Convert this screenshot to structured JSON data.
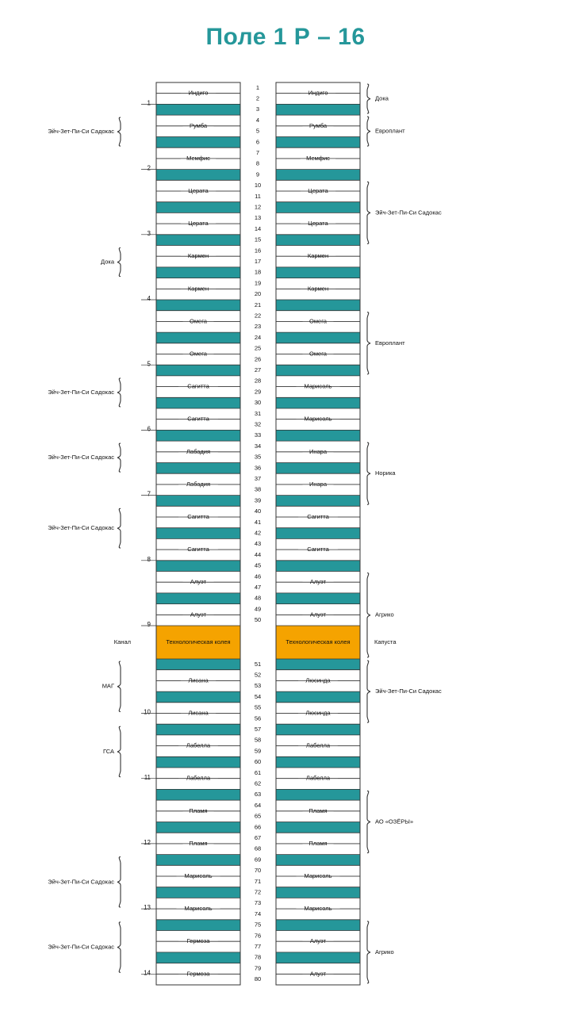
{
  "title": "Поле 1 Р – 16",
  "rows": [
    {
      "n": "1",
      "left": "Индиго",
      "right": "Индиго"
    },
    {
      "n": "2"
    },
    {
      "n": "3",
      "t": "teal"
    },
    {
      "n": "4",
      "left": "Румба",
      "right": "Румба"
    },
    {
      "n": "5"
    },
    {
      "n": "6",
      "t": "teal"
    },
    {
      "n": "7",
      "left": "Мемфис",
      "right": "Мемфис"
    },
    {
      "n": "8"
    },
    {
      "n": "9",
      "t": "teal"
    },
    {
      "n": "10",
      "left": "Церата",
      "right": "Церата"
    },
    {
      "n": "11"
    },
    {
      "n": "12",
      "t": "teal"
    },
    {
      "n": "13",
      "left": "Церата",
      "right": "Церата"
    },
    {
      "n": "14"
    },
    {
      "n": "15",
      "t": "teal"
    },
    {
      "n": "16",
      "left": "Кармен",
      "right": "Кармен"
    },
    {
      "n": "17"
    },
    {
      "n": "18",
      "t": "teal"
    },
    {
      "n": "19",
      "left": "Кармен",
      "right": "Кармен"
    },
    {
      "n": "20"
    },
    {
      "n": "21",
      "t": "teal"
    },
    {
      "n": "22",
      "left": "Омега",
      "right": "Омега"
    },
    {
      "n": "23"
    },
    {
      "n": "24",
      "t": "teal"
    },
    {
      "n": "25",
      "left": "Омега",
      "right": "Омега"
    },
    {
      "n": "26"
    },
    {
      "n": "27",
      "t": "teal"
    },
    {
      "n": "28",
      "left": "Сагитта",
      "right": "Марисоль"
    },
    {
      "n": "29"
    },
    {
      "n": "30",
      "t": "teal"
    },
    {
      "n": "31",
      "left": "Сагитта",
      "right": "Марисоль"
    },
    {
      "n": "32"
    },
    {
      "n": "33",
      "t": "teal"
    },
    {
      "n": "34",
      "left": "Лабадия",
      "right": "Инара"
    },
    {
      "n": "35"
    },
    {
      "n": "36",
      "t": "teal"
    },
    {
      "n": "37",
      "left": "Лабадия",
      "right": "Инара"
    },
    {
      "n": "38"
    },
    {
      "n": "39",
      "t": "teal"
    },
    {
      "n": "40",
      "left": "Сагитта",
      "right": "Сагитта"
    },
    {
      "n": "41"
    },
    {
      "n": "42",
      "t": "teal"
    },
    {
      "n": "43",
      "left": "Сагитта",
      "right": "Сагитта"
    },
    {
      "n": "44"
    },
    {
      "n": "45",
      "t": "teal"
    },
    {
      "n": "46",
      "left": "Алуэт",
      "right": "Алуэт"
    },
    {
      "n": "47"
    },
    {
      "n": "48",
      "t": "teal"
    },
    {
      "n": "49",
      "left": "Алуэт",
      "right": "Алуэт"
    },
    {
      "n": "50"
    },
    {
      "t": "tech",
      "left": "Технологическая колея",
      "right": "Технологическая колея"
    },
    {
      "n": "51",
      "t": "teal"
    },
    {
      "n": "52",
      "left": "Лисана",
      "right": "Люсинда"
    },
    {
      "n": "53"
    },
    {
      "n": "54",
      "t": "teal"
    },
    {
      "n": "55",
      "left": "Лисана",
      "right": "Люсинда"
    },
    {
      "n": "56"
    },
    {
      "n": "57",
      "t": "teal"
    },
    {
      "n": "58",
      "left": "Лабелла",
      "right": "Лабелла"
    },
    {
      "n": "59"
    },
    {
      "n": "60",
      "t": "teal"
    },
    {
      "n": "61",
      "left": "Лабелла",
      "right": "Лабелла"
    },
    {
      "n": "62"
    },
    {
      "n": "63",
      "t": "teal"
    },
    {
      "n": "64",
      "left": "Пламя",
      "right": "Пламя"
    },
    {
      "n": "65"
    },
    {
      "n": "66",
      "t": "teal"
    },
    {
      "n": "67",
      "left": "Пламя",
      "right": "Пламя"
    },
    {
      "n": "68"
    },
    {
      "n": "69",
      "t": "teal"
    },
    {
      "n": "70",
      "left": "Марисоль",
      "right": "Марисоль"
    },
    {
      "n": "71"
    },
    {
      "n": "72",
      "t": "teal"
    },
    {
      "n": "73",
      "left": "Марисоль",
      "right": "Марисоль"
    },
    {
      "n": "74"
    },
    {
      "n": "75",
      "t": "teal"
    },
    {
      "n": "76",
      "left": "Гермоза",
      "right": "Алуэт"
    },
    {
      "n": "77"
    },
    {
      "n": "78",
      "t": "teal"
    },
    {
      "n": "79",
      "left": "Гермоза",
      "right": "Алуэт"
    },
    {
      "n": "80"
    }
  ],
  "plot_numbers": [
    {
      "label": "1",
      "row": 1
    },
    {
      "label": "2",
      "row": 7
    },
    {
      "label": "3",
      "row": 13
    },
    {
      "label": "4",
      "row": 19
    },
    {
      "label": "5",
      "row": 25
    },
    {
      "label": "6",
      "row": 31
    },
    {
      "label": "7",
      "row": 37
    },
    {
      "label": "8",
      "row": 43
    },
    {
      "label": "9",
      "row": 49
    },
    {
      "label": "10",
      "row": 55
    },
    {
      "label": "11",
      "row": 61
    },
    {
      "label": "12",
      "row": 67
    },
    {
      "label": "13",
      "row": 73
    },
    {
      "label": "14",
      "row": 79
    }
  ],
  "left_groups": [
    {
      "label": "Эйч-Зет-Пи-Си Садокас",
      "from": 3,
      "to": 5
    },
    {
      "label": "Дока",
      "from": 15,
      "to": 17
    },
    {
      "label": "Эйч-Зет-Пи-Си Садокас",
      "from": 27,
      "to": 29
    },
    {
      "label": "Эйч-Зет-Пи-Си Садокас",
      "from": 33,
      "to": 35
    },
    {
      "label": "Эйч-Зет-Пи-Си Садокас",
      "from": 39,
      "to": 42
    },
    {
      "label": "МАГ",
      "from": 51,
      "to": 55
    },
    {
      "label": "ГСА",
      "from": 57,
      "to": 61
    },
    {
      "label": "Эйч-Зет-Пи-Си Садокас",
      "from": 69,
      "to": 73
    },
    {
      "label": "Эйч-Зет-Пи-Си Садокас",
      "from": 75,
      "to": 79
    }
  ],
  "right_groups": [
    {
      "label": "Дока",
      "from": 0,
      "to": 2
    },
    {
      "label": "Европлант",
      "from": 3,
      "to": 5
    },
    {
      "label": "Эйч-Зет-Пи-Си Садокас",
      "from": 9,
      "to": 14
    },
    {
      "label": "Европлант",
      "from": 21,
      "to": 26
    },
    {
      "label": "Норика",
      "from": 33,
      "to": 38
    },
    {
      "label": "Агрико",
      "from": 45,
      "to": 50
    },
    {
      "label": "Эйч-Зет-Пи-Си Садокас",
      "from": 51,
      "to": 56
    },
    {
      "label": "АО «ОЗЁРЫ»",
      "from": 63,
      "to": 68
    },
    {
      "label": "Агрико",
      "from": 75,
      "to": 80
    }
  ],
  "side_labels": {
    "left": "Канал",
    "right": "Капуста"
  },
  "colors": {
    "teal": "#25979A",
    "orange": "#F5A300",
    "line": "#333333",
    "title": "#25979A"
  }
}
